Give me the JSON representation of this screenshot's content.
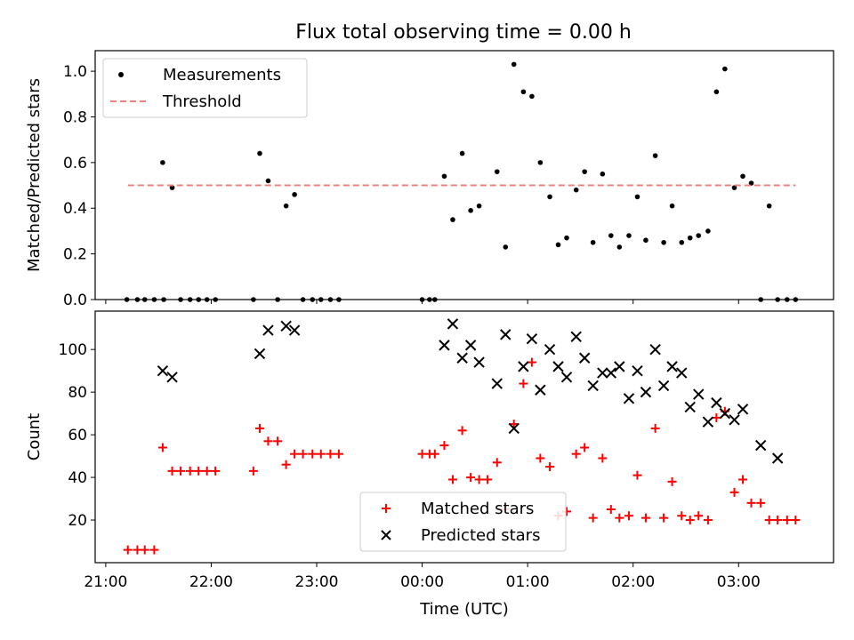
{
  "chart_data": [
    {
      "type": "scatter",
      "title": "Flux total observing time = 0.00 h",
      "ylabel": "Matched/Predicted stars",
      "xlabel": "",
      "x_unit": "hours since 21:00 UTC on the displayed time axis",
      "xlim": [
        -0.1,
        6.9
      ],
      "ylim": [
        0,
        1.09
      ],
      "yticks": [
        0.0,
        0.2,
        0.4,
        0.6,
        0.8,
        1.0
      ],
      "ytick_labels": [
        "0.0",
        "0.2",
        "0.4",
        "0.6",
        "0.8",
        "1.0"
      ],
      "legend": {
        "position": "top-left",
        "entries": [
          "Measurements",
          "Threshold"
        ]
      },
      "grid": false,
      "series": [
        {
          "name": "Measurements",
          "marker": "dot",
          "color": "#000000",
          "points": [
            [
              0.2,
              0.0
            ],
            [
              0.3,
              0.0
            ],
            [
              0.37,
              0.0
            ],
            [
              0.46,
              0.0
            ],
            [
              0.55,
              0.0
            ],
            [
              0.54,
              0.6
            ],
            [
              0.63,
              0.49
            ],
            [
              0.71,
              0.0
            ],
            [
              0.8,
              0.0
            ],
            [
              0.88,
              0.0
            ],
            [
              0.96,
              0.0
            ],
            [
              1.04,
              0.0
            ],
            [
              1.4,
              0.0
            ],
            [
              1.46,
              0.64
            ],
            [
              1.54,
              0.52
            ],
            [
              1.63,
              0.0
            ],
            [
              1.71,
              0.41
            ],
            [
              1.79,
              0.46
            ],
            [
              1.87,
              0.0
            ],
            [
              1.96,
              0.0
            ],
            [
              2.04,
              0.0
            ],
            [
              2.13,
              0.0
            ],
            [
              2.21,
              0.0
            ],
            [
              3.0,
              0.0
            ],
            [
              3.07,
              0.0
            ],
            [
              3.12,
              0.0
            ],
            [
              3.21,
              0.54
            ],
            [
              3.29,
              0.35
            ],
            [
              3.38,
              0.64
            ],
            [
              3.46,
              0.39
            ],
            [
              3.54,
              0.41
            ],
            [
              3.71,
              0.56
            ],
            [
              3.79,
              0.23
            ],
            [
              3.87,
              1.03
            ],
            [
              3.96,
              0.91
            ],
            [
              4.04,
              0.89
            ],
            [
              4.12,
              0.6
            ],
            [
              4.21,
              0.45
            ],
            [
              4.29,
              0.24
            ],
            [
              4.37,
              0.27
            ],
            [
              4.46,
              0.48
            ],
            [
              4.54,
              0.56
            ],
            [
              4.62,
              0.25
            ],
            [
              4.71,
              0.55
            ],
            [
              4.79,
              0.28
            ],
            [
              4.87,
              0.23
            ],
            [
              4.96,
              0.28
            ],
            [
              5.04,
              0.45
            ],
            [
              5.12,
              0.26
            ],
            [
              5.21,
              0.63
            ],
            [
              5.29,
              0.25
            ],
            [
              5.37,
              0.41
            ],
            [
              5.46,
              0.25
            ],
            [
              5.54,
              0.27
            ],
            [
              5.62,
              0.28
            ],
            [
              5.71,
              0.3
            ],
            [
              5.79,
              0.91
            ],
            [
              5.87,
              1.01
            ],
            [
              5.96,
              0.49
            ],
            [
              6.04,
              0.54
            ],
            [
              6.12,
              0.51
            ],
            [
              6.21,
              0.0
            ],
            [
              6.29,
              0.41
            ],
            [
              6.37,
              0.0
            ],
            [
              6.46,
              0.0
            ],
            [
              6.54,
              0.0
            ]
          ]
        },
        {
          "name": "Threshold",
          "style": "dashed",
          "color": "#f08080",
          "x": [
            0.21,
            6.54
          ],
          "y": [
            0.5,
            0.5
          ]
        }
      ]
    },
    {
      "type": "scatter",
      "title": "",
      "ylabel": "Count",
      "xlabel": "Time (UTC)",
      "x_unit": "hours since 21:00 UTC on the displayed time axis",
      "xlim": [
        -0.1,
        6.9
      ],
      "ylim": [
        0,
        118
      ],
      "xticks": [
        0,
        1,
        2,
        3,
        4,
        5,
        6
      ],
      "xtick_labels": [
        "21:00",
        "22:00",
        "23:00",
        "00:00",
        "01:00",
        "02:00",
        "03:00"
      ],
      "yticks": [
        20,
        40,
        60,
        80,
        100
      ],
      "ytick_labels": [
        "20",
        "40",
        "60",
        "80",
        "100"
      ],
      "legend": {
        "position": "lower-center",
        "entries": [
          "Matched stars",
          "Predicted stars"
        ]
      },
      "grid": false,
      "series": [
        {
          "name": "Matched stars",
          "marker": "plus",
          "color": "#ff0000",
          "points": [
            [
              0.21,
              6
            ],
            [
              0.3,
              6
            ],
            [
              0.37,
              6
            ],
            [
              0.46,
              6
            ],
            [
              0.54,
              54
            ],
            [
              0.63,
              43
            ],
            [
              0.71,
              43
            ],
            [
              0.8,
              43
            ],
            [
              0.88,
              43
            ],
            [
              0.96,
              43
            ],
            [
              1.04,
              43
            ],
            [
              1.4,
              43
            ],
            [
              1.46,
              63
            ],
            [
              1.54,
              57
            ],
            [
              1.63,
              57
            ],
            [
              1.71,
              46
            ],
            [
              1.79,
              51
            ],
            [
              1.87,
              51
            ],
            [
              1.96,
              51
            ],
            [
              2.04,
              51
            ],
            [
              2.13,
              51
            ],
            [
              2.21,
              51
            ],
            [
              3.0,
              51
            ],
            [
              3.07,
              51
            ],
            [
              3.12,
              51
            ],
            [
              3.21,
              55
            ],
            [
              3.29,
              39
            ],
            [
              3.38,
              62
            ],
            [
              3.46,
              40
            ],
            [
              3.54,
              39
            ],
            [
              3.62,
              39
            ],
            [
              3.71,
              47
            ],
            [
              3.79,
              25
            ],
            [
              3.87,
              65
            ],
            [
              3.96,
              84
            ],
            [
              4.04,
              94
            ],
            [
              4.12,
              49
            ],
            [
              4.21,
              45
            ],
            [
              4.29,
              22
            ],
            [
              4.37,
              24
            ],
            [
              4.46,
              51
            ],
            [
              4.54,
              54
            ],
            [
              4.62,
              21
            ],
            [
              4.71,
              49
            ],
            [
              4.79,
              25
            ],
            [
              4.87,
              21
            ],
            [
              4.96,
              22
            ],
            [
              5.04,
              41
            ],
            [
              5.12,
              21
            ],
            [
              5.21,
              63
            ],
            [
              5.29,
              21
            ],
            [
              5.37,
              38
            ],
            [
              5.46,
              22
            ],
            [
              5.54,
              20
            ],
            [
              5.62,
              22
            ],
            [
              5.71,
              20
            ],
            [
              5.79,
              68
            ],
            [
              5.87,
              71
            ],
            [
              5.96,
              33
            ],
            [
              6.04,
              39
            ],
            [
              6.12,
              28
            ],
            [
              6.21,
              28
            ],
            [
              6.29,
              20
            ],
            [
              6.37,
              20
            ],
            [
              6.46,
              20
            ],
            [
              6.54,
              20
            ]
          ]
        },
        {
          "name": "Predicted stars",
          "marker": "x",
          "color": "#000000",
          "points": [
            [
              0.54,
              90
            ],
            [
              0.63,
              87
            ],
            [
              1.46,
              98
            ],
            [
              1.54,
              109
            ],
            [
              1.71,
              111
            ],
            [
              1.79,
              109
            ],
            [
              3.21,
              102
            ],
            [
              3.29,
              112
            ],
            [
              3.38,
              96
            ],
            [
              3.46,
              102
            ],
            [
              3.54,
              94
            ],
            [
              3.71,
              84
            ],
            [
              3.79,
              107
            ],
            [
              3.87,
              63
            ],
            [
              3.96,
              92
            ],
            [
              4.04,
              105
            ],
            [
              4.12,
              81
            ],
            [
              4.21,
              100
            ],
            [
              4.29,
              92
            ],
            [
              4.37,
              87
            ],
            [
              4.46,
              106
            ],
            [
              4.54,
              96
            ],
            [
              4.62,
              83
            ],
            [
              4.71,
              89
            ],
            [
              4.79,
              89
            ],
            [
              4.87,
              92
            ],
            [
              4.96,
              77
            ],
            [
              5.04,
              90
            ],
            [
              5.12,
              80
            ],
            [
              5.21,
              100
            ],
            [
              5.29,
              83
            ],
            [
              5.37,
              92
            ],
            [
              5.46,
              89
            ],
            [
              5.54,
              73
            ],
            [
              5.62,
              79
            ],
            [
              5.71,
              66
            ],
            [
              5.79,
              75
            ],
            [
              5.87,
              70
            ],
            [
              5.96,
              67
            ],
            [
              6.04,
              72
            ],
            [
              6.21,
              55
            ],
            [
              6.37,
              49
            ]
          ]
        }
      ]
    }
  ]
}
